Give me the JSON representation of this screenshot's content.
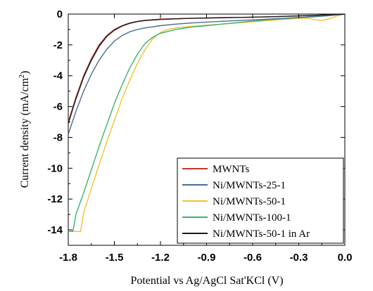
{
  "chart_data": {
    "type": "line",
    "title": "",
    "xlabel": "Potential vs Ag/AgCl Sat'KCl (V)",
    "ylabel": "Current density (mA/cm",
    "ylabel_sup": "2",
    "ylabel_close": ")",
    "xlim": [
      -1.8,
      0.0
    ],
    "ylim": [
      -15.0,
      0.0
    ],
    "x_ticks": [
      "-1.8",
      "-1.5",
      "-1.2",
      "-0.9",
      "-0.6",
      "-0.3",
      "0.0"
    ],
    "y_ticks": [
      "0",
      "-2",
      "-4",
      "-6",
      "-8",
      "-10",
      "-12",
      "-14"
    ],
    "grid": false,
    "legend_position": "bottom-right",
    "series": [
      {
        "name": "MWNTs",
        "color": "#c0392b",
        "x": [
          -1.8,
          -1.75,
          -1.7,
          -1.65,
          -1.6,
          -1.55,
          -1.5,
          -1.45,
          -1.4,
          -1.35,
          -1.3,
          -1.2,
          -1.1,
          -1.0,
          -0.9,
          -0.8,
          -0.7,
          -0.6,
          -0.5,
          -0.4,
          -0.3,
          -0.2,
          -0.1,
          -0.05,
          0.0
        ],
        "y": [
          -7.0,
          -5.4,
          -4.0,
          -2.9,
          -2.0,
          -1.4,
          -1.0,
          -0.75,
          -0.58,
          -0.47,
          -0.4,
          -0.33,
          -0.3,
          -0.27,
          -0.25,
          -0.23,
          -0.22,
          -0.2,
          -0.18,
          -0.15,
          -0.12,
          -0.08,
          -0.04,
          -0.02,
          0.0
        ]
      },
      {
        "name": "Ni/MWNTs-25-1",
        "color": "#4a6d94",
        "x": [
          -1.8,
          -1.75,
          -1.7,
          -1.65,
          -1.6,
          -1.55,
          -1.5,
          -1.45,
          -1.4,
          -1.35,
          -1.3,
          -1.2,
          -1.1,
          -1.0,
          -0.9,
          -0.8,
          -0.7,
          -0.6,
          -0.5,
          -0.4,
          -0.3,
          -0.2,
          -0.1,
          -0.05,
          0.0
        ],
        "y": [
          -7.8,
          -6.3,
          -5.0,
          -3.9,
          -3.0,
          -2.3,
          -1.75,
          -1.4,
          -1.15,
          -1.0,
          -0.9,
          -0.75,
          -0.65,
          -0.58,
          -0.52,
          -0.47,
          -0.42,
          -0.38,
          -0.33,
          -0.28,
          -0.22,
          -0.16,
          -0.1,
          -0.05,
          0.0
        ]
      },
      {
        "name": "Ni/MWNTs-50-1",
        "color": "#f2c12e",
        "x": [
          -1.78,
          -1.72,
          -1.7,
          -1.65,
          -1.6,
          -1.55,
          -1.5,
          -1.45,
          -1.4,
          -1.35,
          -1.3,
          -1.25,
          -1.2,
          -1.15,
          -1.1,
          -1.0,
          -0.9,
          -0.8,
          -0.7,
          -0.6,
          -0.5,
          -0.4,
          -0.3,
          -0.25,
          -0.2,
          -0.15,
          -0.1,
          -0.05,
          0.0
        ],
        "y": [
          -14.1,
          -14.1,
          -12.9,
          -11.3,
          -9.8,
          -8.3,
          -6.9,
          -5.5,
          -4.3,
          -3.2,
          -2.3,
          -1.6,
          -1.2,
          -1.0,
          -0.9,
          -0.8,
          -0.72,
          -0.65,
          -0.58,
          -0.5,
          -0.42,
          -0.35,
          -0.28,
          -0.26,
          -0.35,
          -0.42,
          -0.3,
          -0.12,
          0.0
        ]
      },
      {
        "name": "Ni/MWNTs-100-1",
        "color": "#3cb371",
        "x": [
          -1.8,
          -1.77,
          -1.75,
          -1.7,
          -1.65,
          -1.6,
          -1.55,
          -1.5,
          -1.45,
          -1.4,
          -1.35,
          -1.3,
          -1.25,
          -1.2,
          -1.1,
          -1.0,
          -0.9,
          -0.8,
          -0.7,
          -0.6,
          -0.5,
          -0.4,
          -0.3,
          -0.2,
          -0.1,
          -0.05,
          0.0
        ],
        "y": [
          -14.1,
          -14.1,
          -13.0,
          -11.6,
          -10.1,
          -8.6,
          -7.2,
          -5.8,
          -4.6,
          -3.5,
          -2.6,
          -1.9,
          -1.5,
          -1.25,
          -1.0,
          -0.85,
          -0.75,
          -0.65,
          -0.55,
          -0.45,
          -0.37,
          -0.3,
          -0.24,
          -0.18,
          -0.1,
          -0.05,
          0.0
        ]
      },
      {
        "name": "Ni/MWNTs-50-1 in Ar",
        "color": "#1a1a1a",
        "x": [
          -1.8,
          -1.75,
          -1.7,
          -1.65,
          -1.6,
          -1.55,
          -1.5,
          -1.45,
          -1.4,
          -1.35,
          -1.3,
          -1.2,
          -1.1,
          -1.0,
          -0.9,
          -0.8,
          -0.7,
          -0.6,
          -0.5,
          -0.4,
          -0.3,
          -0.2,
          -0.1,
          -0.05,
          0.0
        ],
        "y": [
          -7.1,
          -5.5,
          -4.1,
          -3.0,
          -2.1,
          -1.45,
          -1.05,
          -0.78,
          -0.6,
          -0.49,
          -0.42,
          -0.35,
          -0.31,
          -0.28,
          -0.26,
          -0.24,
          -0.22,
          -0.2,
          -0.18,
          -0.15,
          -0.12,
          -0.08,
          -0.04,
          -0.02,
          0.0
        ]
      }
    ]
  }
}
